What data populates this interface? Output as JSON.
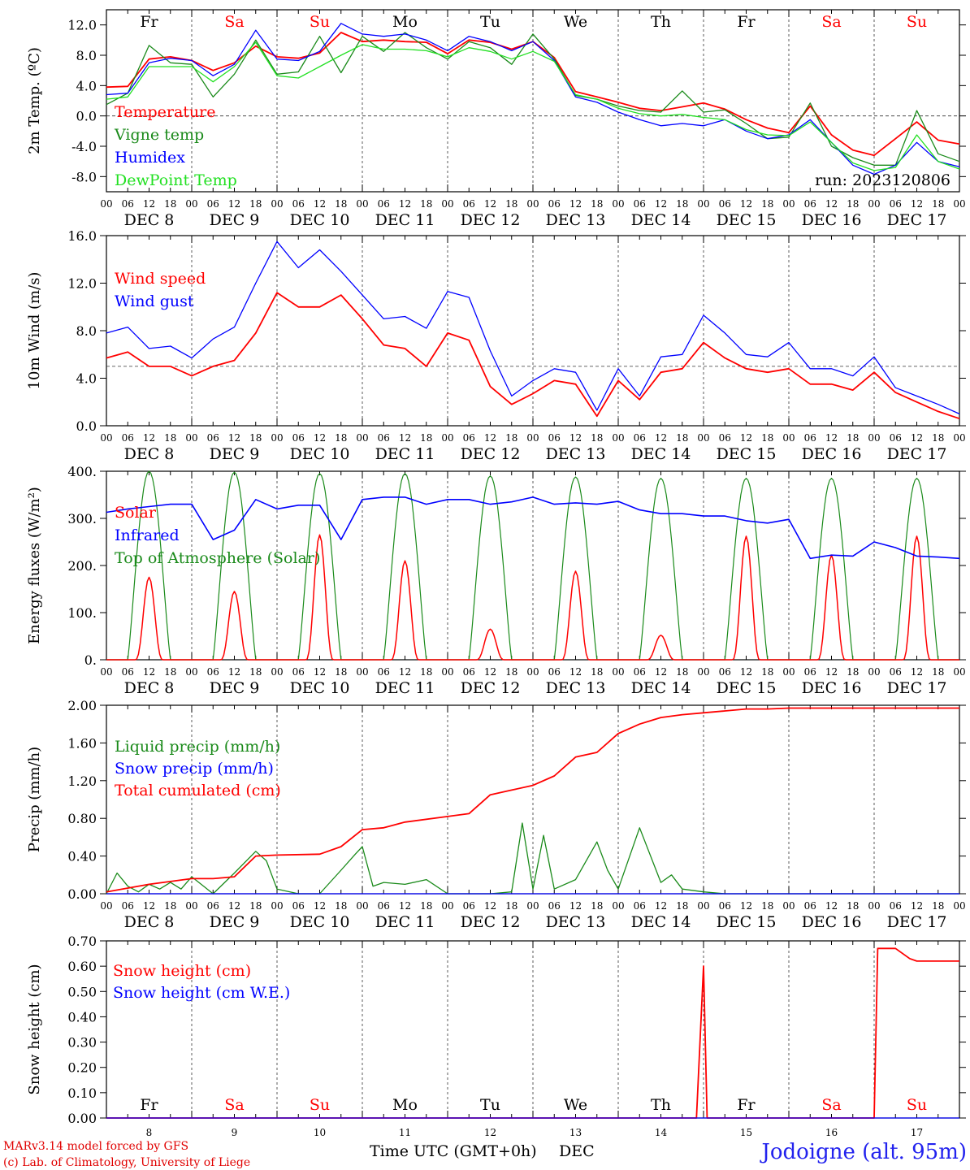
{
  "footer": {
    "model_line": "MARv3.14 model forced by GFS",
    "copyright_line": "(c) Lab. of Climatology, University of Liege",
    "xaxis_title": "Time UTC (GMT+0h)",
    "month": "DEC",
    "station": "Jodoigne (alt. 95m)"
  },
  "run_label": "run: 2023120806",
  "days": {
    "names": [
      "Fr",
      "Sa",
      "Su",
      "Mo",
      "Tu",
      "We",
      "Th",
      "Fr",
      "Sa",
      "Su"
    ],
    "weekend": [
      false,
      true,
      true,
      false,
      false,
      false,
      false,
      false,
      true,
      true
    ],
    "date_labels": [
      "DEC  8",
      "DEC  9",
      "DEC 10",
      "DEC 11",
      "DEC 12",
      "DEC 13",
      "DEC 14",
      "DEC 15",
      "DEC 16",
      "DEC 17"
    ],
    "day_numbers": [
      "8",
      "9",
      "10",
      "11",
      "12",
      "13",
      "14",
      "15",
      "16",
      "17"
    ],
    "hour_ticks": [
      "00",
      "06",
      "12",
      "18"
    ],
    "last_tick": "00"
  },
  "colors": {
    "red": "#ff0000",
    "green": "#1a8a1a",
    "blue": "#0000ff",
    "lightgreen": "#22e022"
  },
  "chart_data": [
    {
      "type": "line",
      "title": "",
      "xlabel": "",
      "ylabel": "2m Temp. (ºC)",
      "x_unit": "hours since DEC 8 00 UTC",
      "ylim": [
        -10,
        14
      ],
      "yticks": [
        "12.0",
        "8.0",
        "4.0",
        "0.0",
        "-4.0",
        "-8.0"
      ],
      "ytick_values": [
        12,
        8,
        4,
        0,
        -4,
        -8
      ],
      "guide_y": 0,
      "series": [
        {
          "name": "Temperature",
          "color": "red",
          "x": [
            0,
            6,
            12,
            18,
            24,
            30,
            36,
            42,
            48,
            54,
            60,
            66,
            72,
            78,
            84,
            90,
            96,
            102,
            108,
            114,
            120,
            126,
            132,
            138,
            144,
            150,
            156,
            162,
            168,
            174,
            180,
            186,
            192,
            198,
            204,
            210,
            216,
            222,
            228,
            234,
            240
          ],
          "y": [
            3.8,
            3.9,
            7.5,
            7.8,
            7.3,
            6.0,
            7.0,
            9.2,
            7.8,
            7.6,
            8.3,
            11.0,
            9.8,
            10.0,
            9.8,
            9.7,
            8.2,
            10.0,
            9.7,
            8.8,
            9.8,
            7.7,
            3.2,
            2.5,
            1.8,
            1.0,
            0.7,
            1.2,
            1.7,
            0.9,
            -0.5,
            -1.6,
            -2.2,
            1.3,
            -2.5,
            -4.5,
            -5.2,
            -3.0,
            -0.8,
            -3.2,
            -3.7
          ]
        },
        {
          "name": "Vigne temp",
          "color": "green",
          "x": [
            0,
            6,
            12,
            18,
            24,
            30,
            36,
            42,
            48,
            54,
            60,
            66,
            72,
            78,
            84,
            90,
            96,
            102,
            108,
            114,
            120,
            126,
            132,
            138,
            144,
            150,
            156,
            162,
            168,
            174,
            180,
            186,
            192,
            198,
            204,
            210,
            216,
            222,
            228,
            234,
            240
          ],
          "y": [
            1.5,
            3.0,
            9.3,
            7.0,
            6.8,
            2.5,
            5.5,
            10.0,
            5.5,
            5.8,
            10.5,
            5.7,
            10.5,
            8.5,
            11.0,
            9.0,
            7.5,
            9.8,
            9.0,
            6.8,
            10.8,
            7.5,
            2.7,
            2.2,
            1.3,
            0.7,
            0.5,
            3.3,
            0.5,
            0.8,
            -1.0,
            -3.0,
            -2.8,
            1.7,
            -4.0,
            -5.5,
            -6.5,
            -6.5,
            0.7,
            -5.0,
            -6.0
          ]
        },
        {
          "name": "Humidex",
          "color": "blue",
          "x": [
            0,
            6,
            12,
            18,
            24,
            30,
            36,
            42,
            48,
            54,
            60,
            66,
            72,
            78,
            84,
            90,
            96,
            102,
            108,
            114,
            120,
            126,
            132,
            138,
            144,
            150,
            156,
            162,
            168,
            174,
            180,
            186,
            192,
            198,
            204,
            210,
            216,
            222,
            228,
            234,
            240
          ],
          "y": [
            2.8,
            3.0,
            7.0,
            7.6,
            7.3,
            5.3,
            6.8,
            11.3,
            7.5,
            7.3,
            8.5,
            12.2,
            10.8,
            10.5,
            10.8,
            10.0,
            8.6,
            10.5,
            9.8,
            8.6,
            9.8,
            7.3,
            2.5,
            1.8,
            0.5,
            -0.5,
            -1.3,
            -1.0,
            -1.3,
            -0.5,
            -2.0,
            -3.0,
            -2.5,
            -0.5,
            -3.5,
            -6.5,
            -7.7,
            -6.5,
            -3.5,
            -6.0,
            -6.7
          ]
        },
        {
          "name": "DewPoint Temp",
          "color": "lightgreen",
          "x": [
            0,
            6,
            12,
            18,
            24,
            30,
            36,
            42,
            48,
            54,
            60,
            66,
            72,
            78,
            84,
            90,
            96,
            102,
            108,
            114,
            120,
            126,
            132,
            138,
            144,
            150,
            156,
            162,
            168,
            174,
            180,
            186,
            192,
            198,
            204,
            210,
            216,
            222,
            228,
            234,
            240
          ],
          "y": [
            2.2,
            2.5,
            6.5,
            6.5,
            6.5,
            4.5,
            6.5,
            9.7,
            5.3,
            5.0,
            6.5,
            8.0,
            9.4,
            8.8,
            8.8,
            8.6,
            7.8,
            9.0,
            8.5,
            7.5,
            8.5,
            7.2,
            2.8,
            2.2,
            1.0,
            0.3,
            0.0,
            0.2,
            -0.2,
            -0.5,
            -1.8,
            -2.5,
            -2.6,
            -0.8,
            -3.5,
            -6.2,
            -7.2,
            -6.8,
            -2.5,
            -6.0,
            -7.0
          ]
        }
      ]
    },
    {
      "type": "line",
      "title": "",
      "xlabel": "",
      "ylabel": "10m Wind (m/s)",
      "x_unit": "hours since DEC 8 00 UTC",
      "ylim": [
        0,
        16
      ],
      "yticks": [
        "16.0",
        "12.0",
        "8.0",
        "4.0",
        "0.0"
      ],
      "ytick_values": [
        16,
        12,
        8,
        4,
        0
      ],
      "guide_y": 5,
      "series": [
        {
          "name": "Wind speed",
          "color": "red",
          "x": [
            0,
            6,
            12,
            18,
            24,
            30,
            36,
            42,
            48,
            54,
            60,
            66,
            72,
            78,
            84,
            90,
            96,
            102,
            108,
            114,
            120,
            126,
            132,
            138,
            144,
            150,
            156,
            162,
            168,
            174,
            180,
            186,
            192,
            198,
            204,
            210,
            216,
            222,
            228,
            234,
            240
          ],
          "y": [
            5.7,
            6.2,
            5.0,
            5.0,
            4.2,
            5.0,
            5.5,
            7.8,
            11.2,
            10.0,
            10.0,
            11.0,
            9.0,
            6.8,
            6.5,
            5.0,
            7.8,
            7.2,
            3.3,
            1.8,
            2.7,
            3.8,
            3.5,
            0.8,
            3.8,
            2.2,
            4.5,
            4.8,
            7.0,
            5.7,
            4.8,
            4.5,
            4.8,
            3.5,
            3.5,
            3.0,
            4.5,
            2.8,
            2.0,
            1.2,
            0.6
          ]
        },
        {
          "name": "Wind gust",
          "color": "blue",
          "x": [
            0,
            6,
            12,
            18,
            24,
            30,
            36,
            42,
            48,
            54,
            60,
            66,
            72,
            78,
            84,
            90,
            96,
            102,
            108,
            114,
            120,
            126,
            132,
            138,
            144,
            150,
            156,
            162,
            168,
            174,
            180,
            186,
            192,
            198,
            204,
            210,
            216,
            222,
            228,
            234,
            240
          ],
          "y": [
            7.8,
            8.3,
            6.5,
            6.7,
            5.7,
            7.3,
            8.3,
            12.0,
            15.5,
            13.3,
            14.8,
            13.0,
            11.0,
            9.0,
            9.2,
            8.2,
            11.3,
            10.8,
            6.3,
            2.5,
            3.8,
            4.8,
            4.5,
            1.3,
            4.8,
            2.5,
            5.8,
            6.0,
            9.3,
            7.8,
            6.0,
            5.8,
            7.0,
            4.8,
            4.8,
            4.2,
            5.8,
            3.2,
            2.5,
            1.8,
            1.0
          ]
        }
      ]
    },
    {
      "type": "line",
      "title": "",
      "xlabel": "",
      "ylabel": "Energy fluxes (W/m²)",
      "x_unit": "hours since DEC 8 00 UTC",
      "ylim": [
        0,
        400
      ],
      "yticks": [
        "400.",
        "300.",
        "200.",
        "100.",
        "0."
      ],
      "ytick_values": [
        400,
        300,
        200,
        100,
        0
      ],
      "daily_peaks": {
        "solar": [
          175,
          145,
          265,
          210,
          65,
          188,
          52,
          262,
          222,
          262
        ],
        "top_of_atmosphere": [
          400,
          398,
          395,
          395,
          390,
          388,
          385,
          385,
          385,
          385
        ]
      },
      "series": [
        {
          "name": "Solar",
          "color": "red"
        },
        {
          "name": "Infrared",
          "color": "blue",
          "x": [
            0,
            6,
            12,
            18,
            24,
            30,
            36,
            42,
            48,
            54,
            60,
            66,
            72,
            78,
            84,
            90,
            96,
            102,
            108,
            114,
            120,
            126,
            132,
            138,
            144,
            150,
            156,
            162,
            168,
            174,
            180,
            186,
            192,
            198,
            204,
            210,
            216,
            222,
            228,
            234,
            240
          ],
          "y": [
            313,
            320,
            325,
            330,
            330,
            255,
            275,
            340,
            320,
            328,
            328,
            255,
            340,
            345,
            345,
            330,
            340,
            340,
            330,
            335,
            345,
            330,
            333,
            330,
            336,
            318,
            310,
            310,
            305,
            305,
            295,
            290,
            298,
            215,
            222,
            220,
            250,
            238,
            220,
            218,
            215
          ]
        },
        {
          "name": "Top of Atmosphere (Solar)",
          "color": "green"
        }
      ]
    },
    {
      "type": "line",
      "title": "",
      "xlabel": "",
      "ylabel": "Precip (mm/h)",
      "x_unit": "hours since DEC 8 00 UTC",
      "ylim": [
        0,
        2.0
      ],
      "yticks": [
        "2.00",
        "1.60",
        "1.20",
        "0.80",
        "0.40",
        "0.00"
      ],
      "ytick_values": [
        2.0,
        1.6,
        1.2,
        0.8,
        0.4,
        0.0
      ],
      "series": [
        {
          "name": "Liquid precip (mm/h)",
          "color": "green",
          "x": [
            0,
            3,
            6,
            9,
            12,
            15,
            18,
            21,
            24,
            30,
            36,
            42,
            45,
            48,
            54,
            60,
            66,
            70,
            72,
            75,
            78,
            84,
            90,
            96,
            102,
            108,
            114,
            117,
            120,
            123,
            126,
            132,
            138,
            141,
            144,
            150,
            156,
            159,
            162,
            168,
            174,
            180,
            186,
            192,
            198,
            204,
            210,
            216,
            222,
            228,
            234,
            240
          ],
          "y": [
            0.0,
            0.22,
            0.08,
            0.02,
            0.1,
            0.05,
            0.12,
            0.05,
            0.18,
            0.0,
            0.22,
            0.45,
            0.35,
            0.05,
            0.0,
            0.0,
            0.25,
            0.42,
            0.5,
            0.08,
            0.12,
            0.1,
            0.15,
            0.0,
            0.0,
            0.0,
            0.02,
            0.75,
            0.05,
            0.62,
            0.05,
            0.15,
            0.55,
            0.25,
            0.05,
            0.7,
            0.12,
            0.2,
            0.05,
            0.02,
            0.0,
            0.0,
            0.0,
            0.0,
            0.0,
            0.0,
            0.0,
            0.0,
            0.0,
            0.0,
            0.0,
            0.0
          ]
        },
        {
          "name": "Snow precip (mm/h)",
          "color": "blue",
          "x": [
            0,
            240
          ],
          "y": [
            0.0,
            0.0
          ]
        },
        {
          "name": "Total cumulated (cm)",
          "color": "red",
          "x": [
            0,
            12,
            24,
            30,
            36,
            42,
            48,
            60,
            66,
            72,
            78,
            84,
            96,
            102,
            108,
            114,
            120,
            126,
            132,
            138,
            144,
            150,
            156,
            162,
            168,
            174,
            180,
            186,
            192,
            198,
            204,
            210,
            216,
            222,
            228,
            234,
            240
          ],
          "y": [
            0.02,
            0.1,
            0.16,
            0.16,
            0.18,
            0.4,
            0.41,
            0.42,
            0.5,
            0.68,
            0.7,
            0.76,
            0.82,
            0.85,
            1.05,
            1.1,
            1.15,
            1.25,
            1.45,
            1.5,
            1.7,
            1.8,
            1.87,
            1.9,
            1.92,
            1.94,
            1.96,
            1.96,
            1.97,
            1.97,
            1.97,
            1.97,
            1.97,
            1.97,
            1.97,
            1.97,
            1.97
          ]
        }
      ]
    },
    {
      "type": "line",
      "title": "",
      "xlabel": "",
      "ylabel": "Snow height (cm)",
      "x_unit": "hours since DEC 8 00 UTC",
      "ylim": [
        0,
        0.7
      ],
      "yticks": [
        "0.70",
        "0.60",
        "0.50",
        "0.40",
        "0.30",
        "0.20",
        "0.10",
        "0.00"
      ],
      "ytick_values": [
        0.7,
        0.6,
        0.5,
        0.4,
        0.3,
        0.2,
        0.1,
        0.0
      ],
      "series": [
        {
          "name": "Snow height (cm)",
          "color": "red",
          "x": [
            0,
            166,
            168,
            169,
            171,
            216,
            217,
            218,
            222,
            226,
            228,
            240
          ],
          "y": [
            0.0,
            0.0,
            0.6,
            0.0,
            0.0,
            0.0,
            0.67,
            0.67,
            0.67,
            0.63,
            0.62,
            0.62
          ]
        },
        {
          "name": "Snow height (cm W.E.)",
          "color": "blue",
          "x": [
            0,
            240
          ],
          "y": [
            0.0,
            0.0
          ]
        }
      ]
    }
  ]
}
